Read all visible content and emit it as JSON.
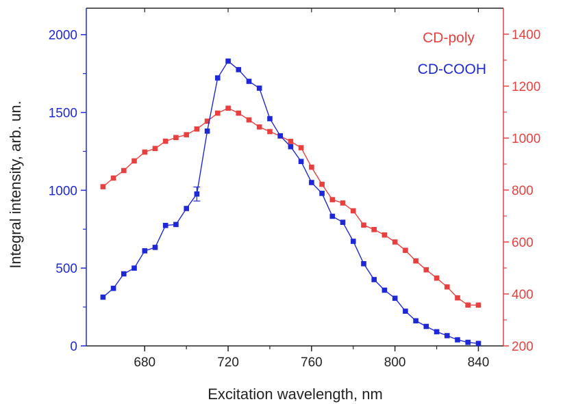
{
  "chart_data": {
    "type": "line",
    "xlabel": "Excitation wavelength, nm",
    "ylabel": "Integral intensity, arb. un.",
    "xlim": [
      652,
      852
    ],
    "x_ticks": [
      680,
      720,
      760,
      800,
      840
    ],
    "y_left_lim": [
      0,
      2170
    ],
    "y_left_ticks": [
      0,
      500,
      1000,
      1500,
      2000
    ],
    "y_right_lim": [
      200,
      1500
    ],
    "y_right_ticks": [
      200,
      400,
      600,
      800,
      1000,
      1200,
      1400
    ],
    "grid": false,
    "legend_position": "top-right",
    "x": [
      660,
      665,
      670,
      675,
      680,
      685,
      690,
      695,
      700,
      705,
      710,
      715,
      720,
      725,
      730,
      735,
      740,
      745,
      750,
      755,
      760,
      765,
      770,
      775,
      780,
      785,
      790,
      795,
      800,
      805,
      810,
      815,
      820,
      825,
      830,
      835,
      840
    ],
    "series": [
      {
        "name": "CD-poly",
        "axis": "right",
        "color": "#e8403f",
        "values": [
          813,
          846,
          875,
          912,
          946,
          960,
          988,
          1002,
          1013,
          1035,
          1065,
          1096,
          1115,
          1096,
          1070,
          1043,
          1025,
          1008,
          987,
          963,
          888,
          822,
          763,
          750,
          720,
          665,
          648,
          627,
          600,
          568,
          527,
          493,
          461,
          427,
          385,
          357,
          357
        ]
      },
      {
        "name": "CD-COOH",
        "axis": "left",
        "color": "#1e28d6",
        "values": [
          313,
          370,
          463,
          500,
          611,
          633,
          774,
          780,
          883,
          976,
          1380,
          1722,
          1830,
          1775,
          1700,
          1656,
          1460,
          1350,
          1280,
          1185,
          1050,
          980,
          833,
          794,
          672,
          528,
          426,
          358,
          306,
          223,
          161,
          125,
          91,
          66,
          39,
          23,
          16
        ]
      }
    ],
    "error_bars": [
      {
        "series": "CD-COOH",
        "x": 705,
        "value": 976,
        "err": 45
      }
    ]
  }
}
